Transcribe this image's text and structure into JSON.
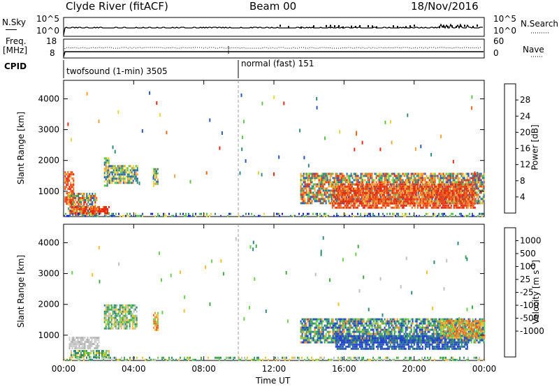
{
  "header": {
    "station": "Clyde River (fitACF)",
    "beam": "Beam 00",
    "date": "18/Nov/2016"
  },
  "top_panels": {
    "nsky_label": "N.Sky",
    "nsky_ticks": [
      "10^5",
      "10^0"
    ],
    "nsearch_ticks": [
      "10^5",
      "10^0"
    ],
    "nsearch_label": "N.Search",
    "freq_label_line1": "Freq.",
    "freq_label_line2": "[MHz]",
    "freq_ticks": [
      "18",
      "8"
    ],
    "nave_ticks": [
      "60",
      "0"
    ],
    "nave_label": "Nave",
    "cpid_label": "CPID",
    "cpid_segments": [
      {
        "label": "twofsound (1-min) 3505",
        "start_hour": 0
      },
      {
        "label": "normal (fast) 151",
        "start_hour": 10
      }
    ]
  },
  "chart_data": [
    {
      "type": "heatmap",
      "name": "power",
      "ylabel": "Slant Range [km]",
      "xlabel": "",
      "x_ticks": [
        "00:00",
        "04:00",
        "08:00",
        "12:00",
        "16:00",
        "20:00",
        "00:00"
      ],
      "y_ticks": [
        "1000",
        "2000",
        "3000",
        "4000"
      ],
      "xlim": [
        0,
        24
      ],
      "ylim": [
        180,
        4600
      ],
      "colorbar": {
        "label": "Power [dB]",
        "ticks": [
          "4",
          "8",
          "12",
          "16",
          "20",
          "24",
          "28"
        ],
        "colors": [
          "#1f1fe8",
          "#2a58b6",
          "#2f8a7a",
          "#5cc44a",
          "#e7d640",
          "#f2a23a",
          "#ef6a20",
          "#e82a12"
        ]
      },
      "regions": [
        {
          "x": [
            0.05,
            0.6
          ],
          "y": [
            600,
            1650
          ],
          "level": "high"
        },
        {
          "x": [
            0.25,
            1.9
          ],
          "y": [
            260,
            950
          ],
          "level": "mixed"
        },
        {
          "x": [
            0.4,
            2.6
          ],
          "y": [
            300,
            520
          ],
          "level": "high"
        },
        {
          "x": [
            2.3,
            2.6
          ],
          "y": [
            1200,
            2100
          ],
          "level": "mid"
        },
        {
          "x": [
            2.5,
            4.2
          ],
          "y": [
            1250,
            1850
          ],
          "level": "mid"
        },
        {
          "x": [
            5.1,
            5.4
          ],
          "y": [
            1150,
            1750
          ],
          "level": "mid"
        },
        {
          "x": [
            13.5,
            24
          ],
          "y": [
            600,
            1600
          ],
          "level": "mixed"
        },
        {
          "x": [
            15.3,
            23.5
          ],
          "y": [
            500,
            1250
          ],
          "level": "high"
        },
        {
          "x": [
            0,
            24
          ],
          "y": [
            180,
            300
          ],
          "level": "low"
        }
      ]
    },
    {
      "type": "heatmap",
      "name": "velocity",
      "ylabel": "Slant Range [km]",
      "xlabel": "Time UT",
      "x_ticks": [
        "00:00",
        "04:00",
        "08:00",
        "12:00",
        "16:00",
        "20:00",
        "00:00"
      ],
      "y_ticks": [
        "1000",
        "2000",
        "3000",
        "4000"
      ],
      "xlim": [
        0,
        24
      ],
      "ylim": [
        180,
        4600
      ],
      "colorbar": {
        "label": "Velocity [m s^-1]",
        "ticks": [
          "1000",
          "500",
          "100",
          "25",
          "-25",
          "-100",
          "-500",
          "-1000"
        ],
        "colors": [
          "#1f3fd0",
          "#2a5ab0",
          "#2f8a7a",
          "#44a84a",
          "#6cd050",
          "#c0c0c0",
          "#f2c030",
          "#f29030",
          "#ee6020",
          "#e82a12"
        ]
      },
      "regions": [
        {
          "x": [
            0.3,
            2.0
          ],
          "y": [
            580,
            950
          ],
          "level": "grey"
        },
        {
          "x": [
            0.4,
            2.6
          ],
          "y": [
            300,
            520
          ],
          "level": "green"
        },
        {
          "x": [
            2.3,
            4.2
          ],
          "y": [
            1250,
            2000
          ],
          "level": "green"
        },
        {
          "x": [
            5.1,
            5.4
          ],
          "y": [
            1150,
            1750
          ],
          "level": "orange"
        },
        {
          "x": [
            13.5,
            24
          ],
          "y": [
            750,
            1550
          ],
          "level": "blue"
        },
        {
          "x": [
            15.5,
            23
          ],
          "y": [
            550,
            1000
          ],
          "level": "deepblue"
        },
        {
          "x": [
            21.5,
            24
          ],
          "y": [
            900,
            1500
          ],
          "level": "orange"
        },
        {
          "x": [
            0,
            24
          ],
          "y": [
            180,
            300
          ],
          "level": "green"
        }
      ]
    }
  ]
}
